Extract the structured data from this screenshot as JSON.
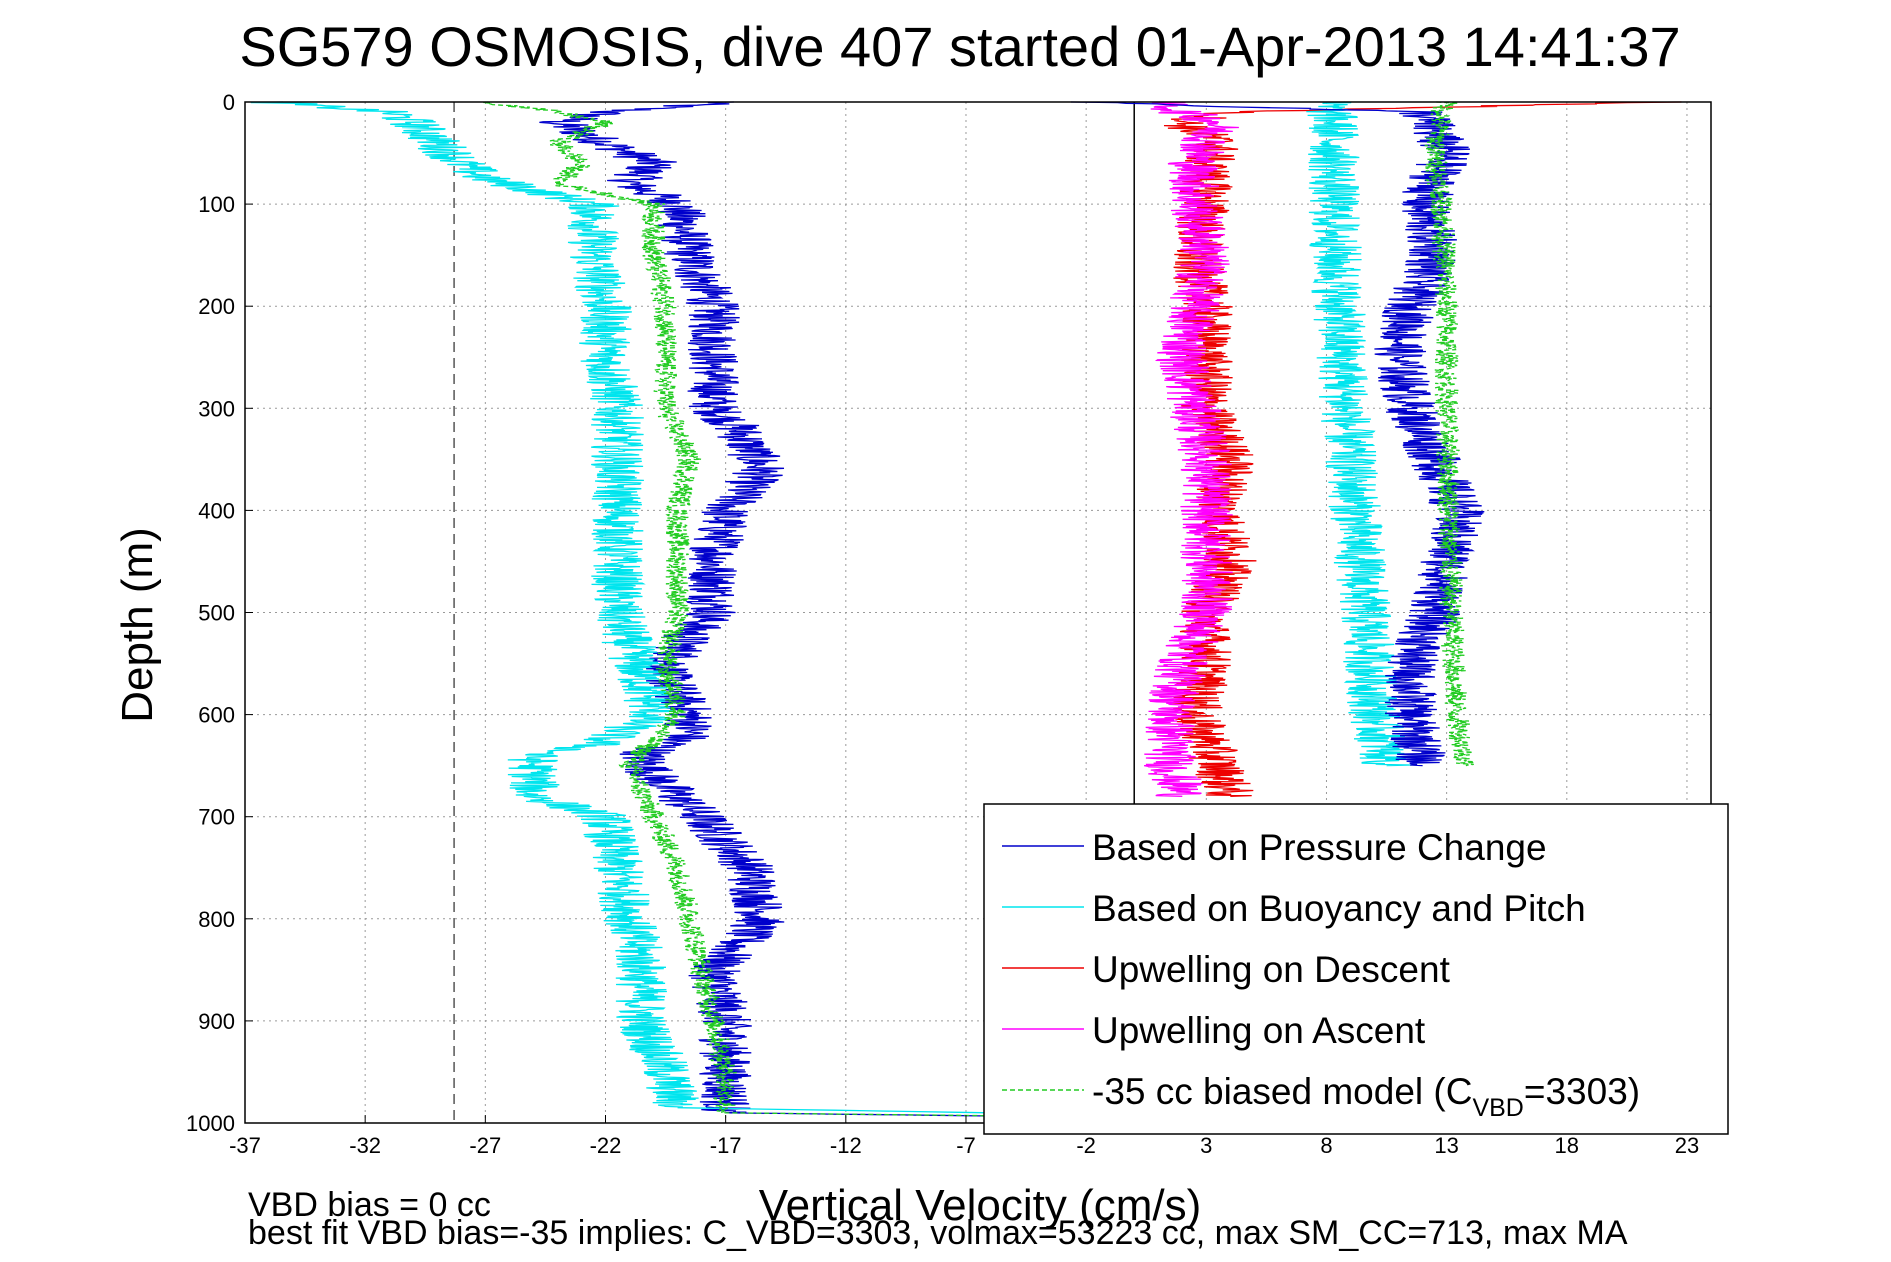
{
  "chart_data": {
    "type": "line",
    "title": "SG579 OSMOSIS, dive 407 started 01-Apr-2013 14:41:37",
    "xlabel": "Vertical Velocity (cm/s)",
    "ylabel": "Depth (m)",
    "xlim": [
      -37,
      24
    ],
    "ylim": [
      0,
      1000
    ],
    "y_reversed": true,
    "x_ticks": [
      -37,
      -32,
      -27,
      -22,
      -17,
      -12,
      -7,
      -2,
      3,
      8,
      13,
      18,
      23
    ],
    "y_ticks": [
      0,
      100,
      200,
      300,
      400,
      500,
      600,
      700,
      800,
      900,
      1000
    ],
    "grid": true,
    "legend_position": "bottom-right",
    "reference_lines": [
      {
        "x": -28.3,
        "style": "dashed",
        "color": "#555555"
      },
      {
        "x": 0,
        "style": "solid",
        "color": "#000000"
      }
    ],
    "series": [
      {
        "name": "Based on Pressure Change",
        "color": "#0000cc",
        "style": "solid",
        "depth": [
          0,
          10,
          20,
          40,
          60,
          80,
          100,
          150,
          200,
          250,
          300,
          320,
          360,
          400,
          450,
          500,
          520,
          560,
          600,
          620,
          640,
          660,
          700,
          750,
          800,
          850,
          900,
          950,
          990,
          1000
        ],
        "values": [
          -17,
          -22,
          -24,
          -22,
          -20,
          -21,
          -19,
          -18.5,
          -17.5,
          -17.5,
          -17.5,
          -16.5,
          -15.5,
          -17,
          -17.5,
          -17.5,
          -18.5,
          -19.5,
          -18.5,
          -18.5,
          -20.5,
          -20,
          -18,
          -16,
          -15.5,
          -17.5,
          -17,
          -17,
          -17,
          18
        ]
      },
      {
        "name": "Based on Buoyancy and Pitch",
        "color": "#00e5ee",
        "style": "solid",
        "depth": [
          0,
          10,
          20,
          40,
          60,
          75,
          100,
          150,
          200,
          250,
          300,
          400,
          500,
          600,
          630,
          640,
          680,
          700,
          750,
          800,
          850,
          900,
          950,
          985,
          1000
        ],
        "values": [
          -36,
          -31,
          -30,
          -29,
          -28,
          -27,
          -22.5,
          -22.5,
          -22,
          -22,
          -21.5,
          -21.5,
          -21.5,
          -20,
          -22.5,
          -25,
          -25,
          -22,
          -21.5,
          -21,
          -20.5,
          -20.5,
          -19.5,
          -19,
          20
        ]
      },
      {
        "name": "Upwelling on Descent",
        "color": "#ee0000",
        "style": "solid",
        "depth": [
          0,
          10,
          20,
          40,
          60,
          100,
          150,
          200,
          250,
          300,
          350,
          400,
          450,
          500,
          550,
          600,
          650,
          680
        ],
        "values": [
          22,
          4,
          2,
          3.5,
          3,
          3,
          2.5,
          3,
          3,
          3,
          4,
          3.5,
          4,
          3,
          3,
          2.5,
          3.5,
          4
        ]
      },
      {
        "name": "Upwelling on Ascent",
        "color": "#ff00ff",
        "style": "solid",
        "depth": [
          0,
          10,
          20,
          40,
          60,
          100,
          150,
          200,
          250,
          300,
          350,
          400,
          450,
          500,
          550,
          600,
          650,
          680
        ],
        "values": [
          1,
          2,
          3.5,
          3,
          2.5,
          2.5,
          3,
          2.5,
          2,
          2.5,
          3,
          3,
          3,
          3,
          2,
          1.5,
          1.5,
          2
        ]
      },
      {
        "name": "-35 cc biased model (C<sub>VBD</sub>=3303)",
        "color": "#22cc22",
        "style": "dashed",
        "depth": [
          0,
          10,
          20,
          40,
          60,
          80,
          100,
          150,
          200,
          250,
          300,
          350,
          400,
          450,
          500,
          550,
          600,
          650,
          700,
          750,
          800,
          850,
          900,
          950,
          990,
          1000
        ],
        "values": [
          -27,
          -24,
          -22,
          -24,
          -23,
          -24,
          -20,
          -20,
          -19.5,
          -19.5,
          -19.5,
          -18.5,
          -19,
          -19,
          -19,
          -19.5,
          -19,
          -21,
          -20,
          -19,
          -18.5,
          -18,
          -17.5,
          -17,
          -17,
          21
        ]
      },
      {
        "name": "",
        "color": "#00e5ee",
        "style": "solid",
        "depth": [
          0,
          20,
          100,
          200,
          300,
          400,
          500,
          600,
          650
        ],
        "values": [
          8,
          8.3,
          8.3,
          8.5,
          8.8,
          9.2,
          9.6,
          10,
          10.5
        ]
      },
      {
        "name": "",
        "color": "#0000cc",
        "style": "solid",
        "depth": [
          0,
          10,
          50,
          100,
          150,
          200,
          250,
          300,
          350,
          400,
          450,
          500,
          550,
          600,
          650
        ],
        "values": [
          -2,
          12,
          13,
          12,
          12.5,
          11.5,
          11,
          11.5,
          12.5,
          13.5,
          13,
          12.5,
          11.5,
          11.5,
          12
        ]
      },
      {
        "name": "",
        "color": "#22cc22",
        "style": "dashed",
        "depth": [
          0,
          10,
          50,
          100,
          200,
          300,
          400,
          500,
          600,
          650
        ],
        "values": [
          13,
          12.8,
          12.5,
          12.8,
          13,
          13,
          13.1,
          13.2,
          13.4,
          13.8
        ]
      }
    ],
    "legend": [
      {
        "label": "Based on Pressure Change",
        "color": "#0000cc",
        "style": "solid"
      },
      {
        "label": "Based on Buoyancy and Pitch",
        "color": "#00e5ee",
        "style": "solid"
      },
      {
        "label": "Upwelling on Descent",
        "color": "#ee0000",
        "style": "solid"
      },
      {
        "label": "Upwelling on Ascent",
        "color": "#ff00ff",
        "style": "solid"
      },
      {
        "label_main": "-35 cc biased model (C",
        "label_sub": "VBD",
        "label_end": "=3303)",
        "color": "#22cc22",
        "style": "dashed"
      }
    ]
  },
  "notes": {
    "line1": "VBD bias = 0 cc",
    "line2": "best fit VBD bias=-35 implies: C_VBD=3303, volmax=53223 cc, max SM_CC=713, max MA"
  }
}
